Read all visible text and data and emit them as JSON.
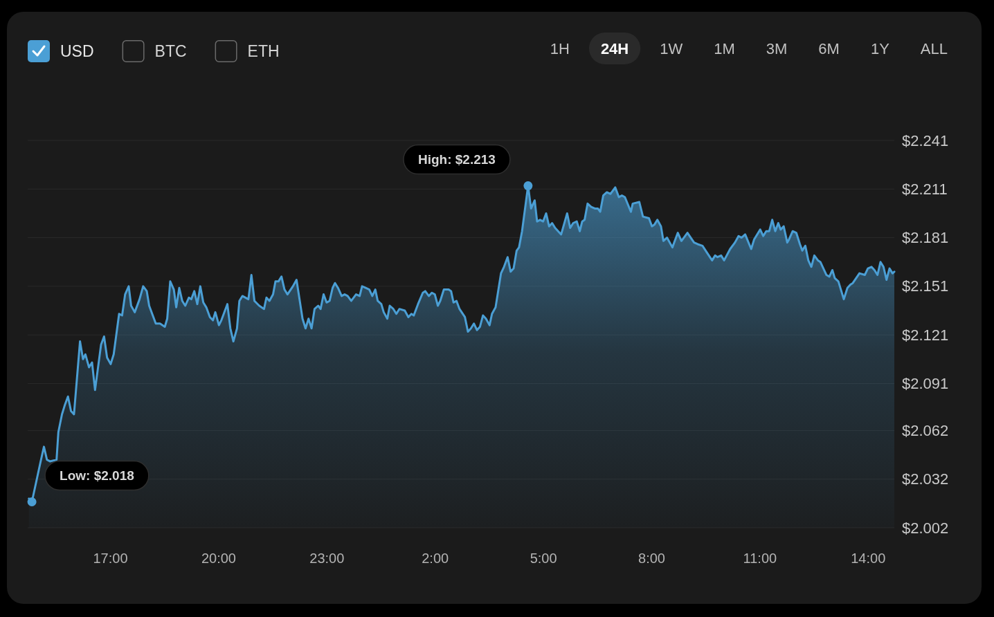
{
  "chart_data": {
    "type": "area",
    "x": [
      "2000-01-01T14:45",
      "2000-01-01T14:50",
      "2000-01-01T15:04",
      "2000-01-01T15:10",
      "2000-01-01T15:15",
      "2000-01-01T15:20",
      "2000-01-01T15:31",
      "2000-01-01T15:34",
      "2000-01-01T15:40",
      "2000-01-01T15:45",
      "2000-01-01T15:50",
      "2000-01-01T15:55",
      "2000-01-01T16:00",
      "2000-01-01T16:10",
      "2000-01-01T16:15",
      "2000-01-01T16:19",
      "2000-01-01T16:25",
      "2000-01-01T16:30",
      "2000-01-01T16:35",
      "2000-01-01T16:45",
      "2000-01-01T16:50",
      "2000-01-01T16:55",
      "2000-01-01T17:01",
      "2000-01-01T17:06",
      "2000-01-01T17:15",
      "2000-01-01T17:20",
      "2000-01-01T17:25",
      "2000-01-01T17:31",
      "2000-01-01T17:35",
      "2000-01-01T17:41",
      "2000-01-01T17:49",
      "2000-01-01T17:55",
      "2000-01-01T18:01",
      "2000-01-01T18:05",
      "2000-01-01T18:16",
      "2000-01-01T18:23",
      "2000-01-01T18:31",
      "2000-01-01T18:35",
      "2000-01-01T18:40",
      "2000-01-01T18:46",
      "2000-01-01T18:50",
      "2000-01-01T18:55",
      "2000-01-01T19:00",
      "2000-01-01T19:05",
      "2000-01-01T19:11",
      "2000-01-01T19:15",
      "2000-01-01T19:20",
      "2000-01-01T19:25",
      "2000-01-01T19:30",
      "2000-01-01T19:35",
      "2000-01-01T19:40",
      "2000-01-01T19:46",
      "2000-01-01T19:51",
      "2000-01-01T19:55",
      "2000-01-01T20:01",
      "2000-01-01T20:05",
      "2000-01-01T20:15",
      "2000-01-01T20:20",
      "2000-01-01T20:25",
      "2000-01-01T20:31",
      "2000-01-01T20:35",
      "2000-01-01T20:40",
      "2000-01-01T20:50",
      "2000-01-01T20:55",
      "2000-01-01T21:00",
      "2000-01-01T21:08",
      "2000-01-01T21:16",
      "2000-01-01T21:20",
      "2000-01-01T21:25",
      "2000-01-01T21:31",
      "2000-01-01T21:35",
      "2000-01-01T21:40",
      "2000-01-01T21:45",
      "2000-01-01T21:50",
      "2000-01-01T21:55",
      "2000-01-01T22:04",
      "2000-01-01T22:10",
      "2000-01-01T22:20",
      "2000-01-01T22:25",
      "2000-01-01T22:30",
      "2000-01-01T22:35",
      "2000-01-01T22:40",
      "2000-01-01T22:46",
      "2000-01-01T22:50",
      "2000-01-01T22:55",
      "2000-01-01T23:00",
      "2000-01-01T23:05",
      "2000-01-01T23:10",
      "2000-01-01T23:14",
      "2000-01-01T23:19",
      "2000-01-01T23:25",
      "2000-01-01T23:30",
      "2000-01-01T23:35",
      "2000-01-01T23:41",
      "2000-01-01T23:49",
      "2000-01-01T23:55",
      "2000-01-01T23:59",
      "2000-01-02T00:05",
      "2000-01-02T00:11",
      "2000-01-02T00:16",
      "2000-01-02T00:21",
      "2000-01-02T00:25",
      "2000-01-02T00:31",
      "2000-01-02T00:35",
      "2000-01-02T00:41",
      "2000-01-02T00:45",
      "2000-01-02T00:51",
      "2000-01-02T00:56",
      "2000-01-02T01:01",
      "2000-01-02T01:10",
      "2000-01-02T01:16",
      "2000-01-02T01:21",
      "2000-01-02T01:25",
      "2000-01-02T01:32",
      "2000-01-02T01:40",
      "2000-01-02T01:44",
      "2000-01-02T01:50",
      "2000-01-02T01:55",
      "2000-01-02T02:00",
      "2000-01-02T02:05",
      "2000-01-02T02:09",
      "2000-01-02T02:15",
      "2000-01-02T02:23",
      "2000-01-02T02:27",
      "2000-01-02T02:31",
      "2000-01-02T02:36",
      "2000-01-02T02:41",
      "2000-01-02T02:50",
      "2000-01-02T02:55",
      "2000-01-02T03:00",
      "2000-01-02T03:05",
      "2000-01-02T03:10",
      "2000-01-02T03:15",
      "2000-01-02T03:20",
      "2000-01-02T03:25",
      "2000-01-02T03:31",
      "2000-01-02T03:35",
      "2000-01-02T03:41",
      "2000-01-02T03:50",
      "2000-01-02T03:55",
      "2000-01-02T04:01",
      "2000-01-02T04:06",
      "2000-01-02T04:11",
      "2000-01-02T04:16",
      "2000-01-02T04:20",
      "2000-01-02T04:25",
      "2000-01-02T04:35",
      "2000-01-02T04:40",
      "2000-01-02T04:46",
      "2000-01-02T04:50",
      "2000-01-02T04:55",
      "2000-01-02T05:00",
      "2000-01-02T05:05",
      "2000-01-02T05:10",
      "2000-01-02T05:15",
      "2000-01-02T05:20",
      "2000-01-02T05:30",
      "2000-01-02T05:40",
      "2000-01-02T05:45",
      "2000-01-02T05:50",
      "2000-01-02T05:56",
      "2000-01-02T06:01",
      "2000-01-02T06:05",
      "2000-01-02T06:09",
      "2000-01-02T06:14",
      "2000-01-02T06:20",
      "2000-01-02T06:26",
      "2000-01-02T06:31",
      "2000-01-02T06:35",
      "2000-01-02T06:40",
      "2000-01-02T06:46",
      "2000-01-02T06:52",
      "2000-01-02T07:00",
      "2000-01-02T07:06",
      "2000-01-02T07:11",
      "2000-01-02T07:16",
      "2000-01-02T07:26",
      "2000-01-02T07:29",
      "2000-01-02T07:40",
      "2000-01-02T07:46",
      "2000-01-02T07:56",
      "2000-01-02T08:01",
      "2000-01-02T08:05",
      "2000-01-02T08:10",
      "2000-01-02T08:16",
      "2000-01-02T08:20",
      "2000-01-02T08:26",
      "2000-01-02T08:35",
      "2000-01-02T08:44",
      "2000-01-02T08:50",
      "2000-01-02T09:00",
      "2000-01-02T09:11",
      "2000-01-02T09:17",
      "2000-01-02T09:25",
      "2000-01-02T09:32",
      "2000-01-02T09:41",
      "2000-01-02T09:46",
      "2000-01-02T09:50",
      "2000-01-02T09:56",
      "2000-01-02T10:01",
      "2000-01-02T10:11",
      "2000-01-02T10:19",
      "2000-01-02T10:25",
      "2000-01-02T10:30",
      "2000-01-02T10:36",
      "2000-01-02T10:46",
      "2000-01-02T10:51",
      "2000-01-02T11:01",
      "2000-01-02T11:06",
      "2000-01-02T11:11",
      "2000-01-02T11:16",
      "2000-01-02T11:21",
      "2000-01-02T11:26",
      "2000-01-02T11:31",
      "2000-01-02T11:35",
      "2000-01-02T11:40",
      "2000-01-02T11:46",
      "2000-01-02T11:49",
      "2000-01-02T11:55",
      "2000-01-02T12:01",
      "2000-01-02T12:07",
      "2000-01-02T12:11",
      "2000-01-02T12:16",
      "2000-01-02T12:21",
      "2000-01-02T12:26",
      "2000-01-02T12:31",
      "2000-01-02T12:37",
      "2000-01-02T12:41",
      "2000-01-02T12:51",
      "2000-01-02T12:56",
      "2000-01-02T13:01",
      "2000-01-02T13:05",
      "2000-01-02T13:11",
      "2000-01-02T13:20",
      "2000-01-02T13:26",
      "2000-01-02T13:31",
      "2000-01-02T13:35",
      "2000-01-02T13:46",
      "2000-01-02T13:55",
      "2000-01-02T14:00",
      "2000-01-02T14:06",
      "2000-01-02T14:11",
      "2000-01-02T14:16",
      "2000-01-02T14:21",
      "2000-01-02T14:26",
      "2000-01-02T14:31",
      "2000-01-02T14:36",
      "2000-01-02T14:41",
      "2000-01-02T14:44"
    ],
    "series": [
      {
        "name": "USD",
        "color": "#4b9fd5",
        "values": [
          2.02,
          2.018,
          2.042,
          2.052,
          2.044,
          2.043,
          2.044,
          2.061,
          2.072,
          2.078,
          2.083,
          2.074,
          2.072,
          2.117,
          2.106,
          2.109,
          2.101,
          2.104,
          2.087,
          2.115,
          2.12,
          2.107,
          2.103,
          2.109,
          2.134,
          2.133,
          2.146,
          2.151,
          2.139,
          2.135,
          2.143,
          2.151,
          2.148,
          2.139,
          2.128,
          2.128,
          2.126,
          2.131,
          2.154,
          2.149,
          2.138,
          2.15,
          2.142,
          2.139,
          2.144,
          2.143,
          2.148,
          2.14,
          2.151,
          2.141,
          2.138,
          2.132,
          2.13,
          2.135,
          2.127,
          2.13,
          2.14,
          2.125,
          2.117,
          2.125,
          2.142,
          2.145,
          2.143,
          2.158,
          2.142,
          2.139,
          2.137,
          2.144,
          2.142,
          2.146,
          2.154,
          2.154,
          2.157,
          2.149,
          2.146,
          2.151,
          2.155,
          2.131,
          2.125,
          2.131,
          2.125,
          2.137,
          2.139,
          2.137,
          2.146,
          2.141,
          2.142,
          2.15,
          2.153,
          2.15,
          2.145,
          2.146,
          2.145,
          2.142,
          2.146,
          2.145,
          2.151,
          2.15,
          2.149,
          2.145,
          2.149,
          2.142,
          2.14,
          2.135,
          2.131,
          2.139,
          2.137,
          2.134,
          2.137,
          2.136,
          2.132,
          2.134,
          2.133,
          2.14,
          2.147,
          2.148,
          2.145,
          2.147,
          2.146,
          2.139,
          2.142,
          2.149,
          2.149,
          2.148,
          2.141,
          2.142,
          2.137,
          2.132,
          2.123,
          2.125,
          2.128,
          2.124,
          2.126,
          2.133,
          2.131,
          2.127,
          2.134,
          2.138,
          2.159,
          2.163,
          2.169,
          2.16,
          2.162,
          2.173,
          2.175,
          2.185,
          2.213,
          2.199,
          2.204,
          2.191,
          2.192,
          2.191,
          2.196,
          2.188,
          2.19,
          2.187,
          2.183,
          2.196,
          2.187,
          2.19,
          2.191,
          2.185,
          2.191,
          2.192,
          2.202,
          2.2,
          2.199,
          2.199,
          2.197,
          2.207,
          2.209,
          2.208,
          2.212,
          2.206,
          2.207,
          2.206,
          2.197,
          2.202,
          2.203,
          2.194,
          2.193,
          2.188,
          2.189,
          2.192,
          2.188,
          2.179,
          2.181,
          2.175,
          2.184,
          2.179,
          2.184,
          2.178,
          2.177,
          2.176,
          2.172,
          2.167,
          2.17,
          2.169,
          2.17,
          2.167,
          2.174,
          2.178,
          2.182,
          2.181,
          2.183,
          2.174,
          2.18,
          2.186,
          2.182,
          2.185,
          2.185,
          2.192,
          2.185,
          2.19,
          2.186,
          2.188,
          2.178,
          2.18,
          2.185,
          2.184,
          2.177,
          2.173,
          2.176,
          2.167,
          2.163,
          2.17,
          2.167,
          2.166,
          2.158,
          2.157,
          2.161,
          2.156,
          2.154,
          2.143,
          2.15,
          2.152,
          2.153,
          2.159,
          2.158,
          2.162,
          2.163,
          2.161,
          2.158,
          2.166,
          2.163,
          2.155,
          2.162,
          2.159,
          2.16
        ]
      }
    ],
    "xlim": [
      "2000-01-01T14:43",
      "2000-01-02T14:44"
    ],
    "xticks": [
      {
        "value": "2000-01-01T17:00",
        "label": "17:00"
      },
      {
        "value": "2000-01-01T20:00",
        "label": "20:00"
      },
      {
        "value": "2000-01-01T23:00",
        "label": "23:00"
      },
      {
        "value": "2000-01-02T02:00",
        "label": "2:00"
      },
      {
        "value": "2000-01-02T05:00",
        "label": "5:00"
      },
      {
        "value": "2000-01-02T08:00",
        "label": "8:00"
      },
      {
        "value": "2000-01-02T11:00",
        "label": "11:00"
      },
      {
        "value": "2000-01-02T14:00",
        "label": "14:00"
      }
    ],
    "ylim": [
      2.002,
      2.241
    ],
    "yticks": [
      {
        "value": 2.002,
        "label": "$2.002"
      },
      {
        "value": 2.032,
        "label": "$2.032"
      },
      {
        "value": 2.062,
        "label": "$2.062"
      },
      {
        "value": 2.091,
        "label": "$2.091"
      },
      {
        "value": 2.121,
        "label": "$2.121"
      },
      {
        "value": 2.151,
        "label": "$2.151"
      },
      {
        "value": 2.181,
        "label": "$2.181"
      },
      {
        "value": 2.211,
        "label": "$2.211"
      },
      {
        "value": 2.241,
        "label": "$2.241"
      }
    ],
    "grid": "y",
    "legend": "top left",
    "annotations": [
      "BTC",
      "ETH",
      "1H",
      "24H",
      "1W",
      "1M",
      "3M",
      "6M",
      "1Y",
      "ALL",
      {
        "text": "High: $2.213",
        "x": "2000-01-02T04:35",
        "y": 2.213
      },
      {
        "text": "Low: $2.018",
        "x": "2000-01-01T14:50",
        "y": 2.018
      }
    ]
  }
}
